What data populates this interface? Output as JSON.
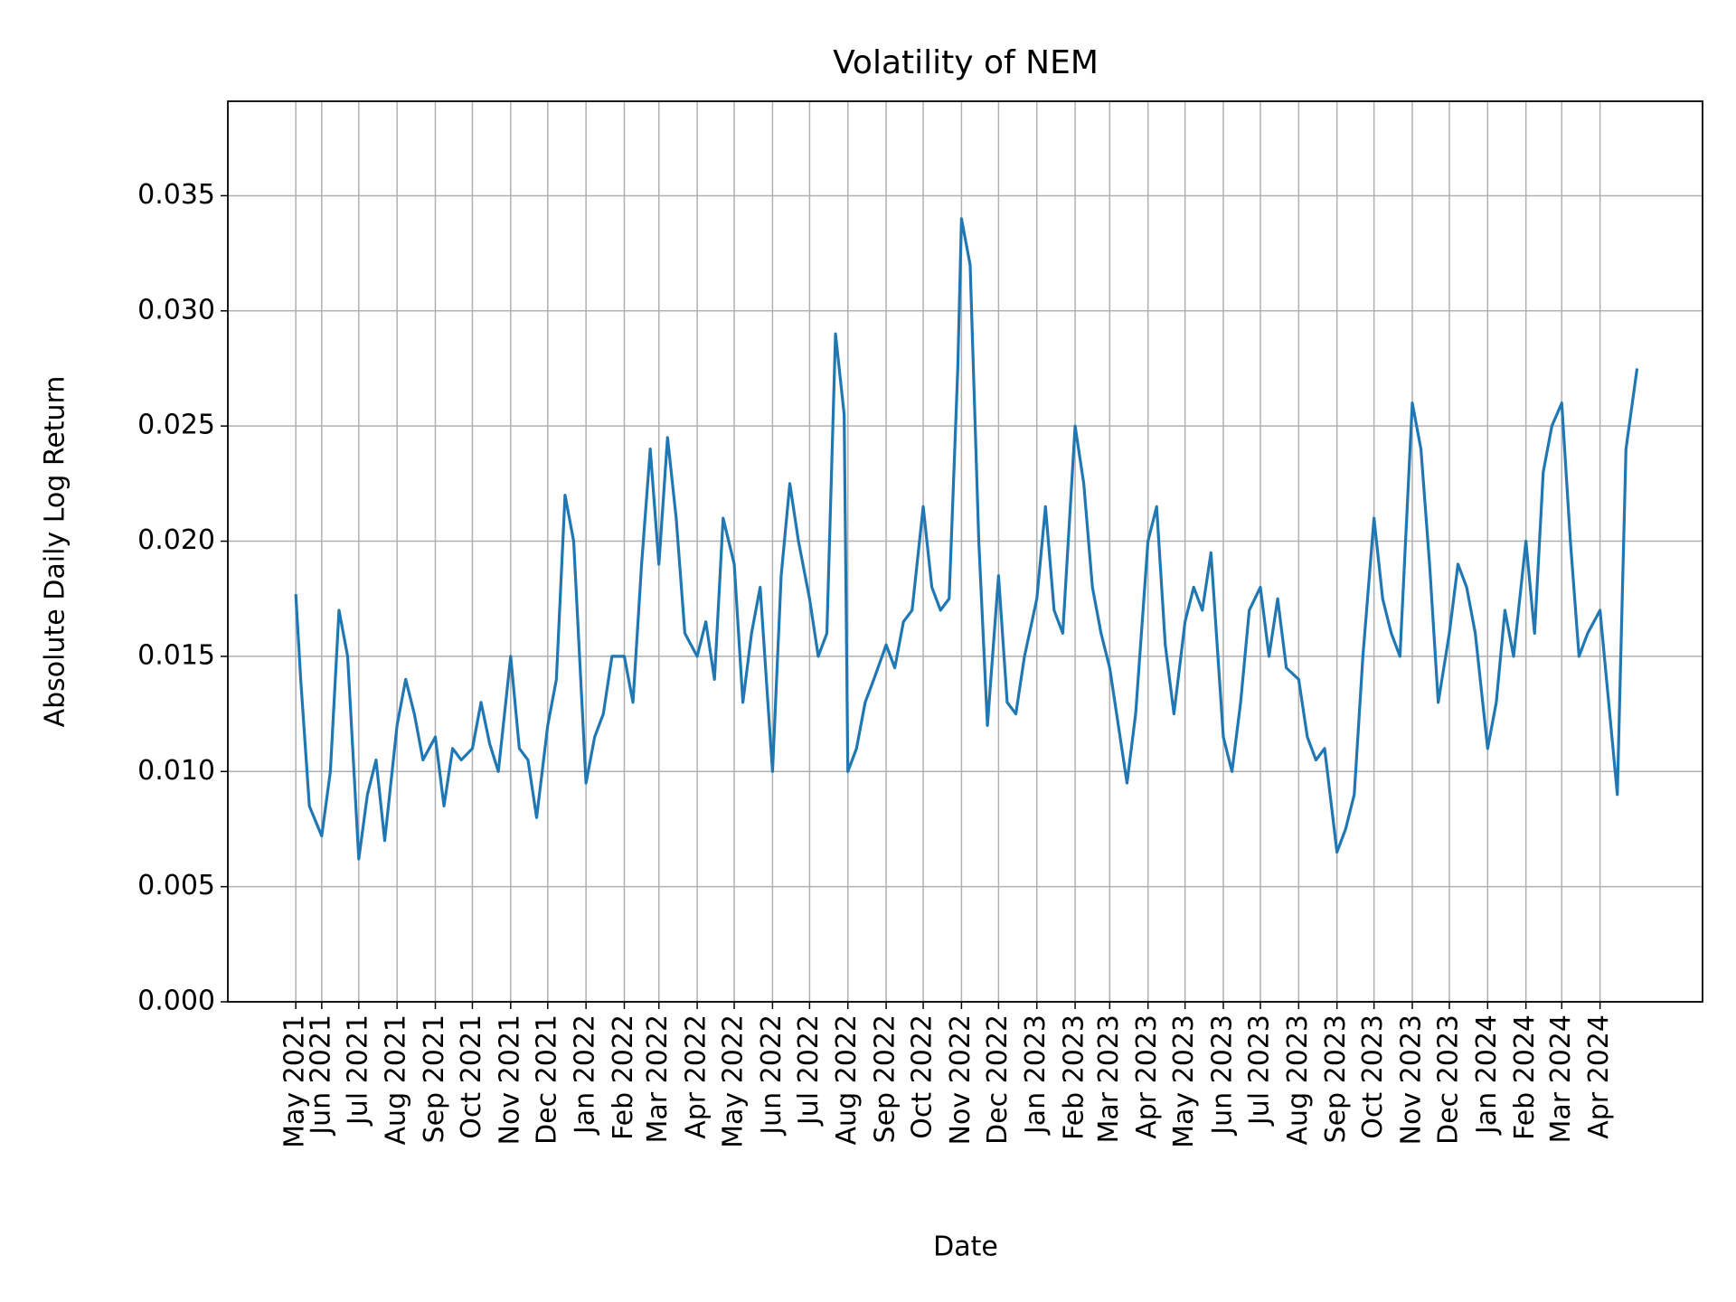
{
  "chart_data": {
    "type": "line",
    "title": "Volatility of NEM",
    "xlabel": "Date",
    "ylabel": "Absolute Daily Log Return",
    "x": [
      "2021-05-11",
      "2021-05-15",
      "2021-05-22",
      "2021-06-01",
      "2021-06-08",
      "2021-06-15",
      "2021-06-22",
      "2021-07-01",
      "2021-07-08",
      "2021-07-15",
      "2021-07-22",
      "2021-08-01",
      "2021-08-08",
      "2021-08-15",
      "2021-08-22",
      "2021-09-01",
      "2021-09-08",
      "2021-09-15",
      "2021-09-22",
      "2021-10-01",
      "2021-10-08",
      "2021-10-15",
      "2021-10-22",
      "2021-11-01",
      "2021-11-08",
      "2021-11-15",
      "2021-11-22",
      "2021-12-01",
      "2021-12-08",
      "2021-12-15",
      "2021-12-22",
      "2022-01-01",
      "2022-01-08",
      "2022-01-15",
      "2022-01-22",
      "2022-02-01",
      "2022-02-08",
      "2022-02-15",
      "2022-02-22",
      "2022-03-01",
      "2022-03-08",
      "2022-03-15",
      "2022-03-22",
      "2022-04-01",
      "2022-04-08",
      "2022-04-15",
      "2022-04-22",
      "2022-05-01",
      "2022-05-08",
      "2022-05-15",
      "2022-05-22",
      "2022-06-01",
      "2022-06-08",
      "2022-06-15",
      "2022-06-22",
      "2022-07-01",
      "2022-07-08",
      "2022-07-15",
      "2022-07-22",
      "2022-07-29",
      "2022-08-01",
      "2022-08-08",
      "2022-08-15",
      "2022-08-22",
      "2022-09-01",
      "2022-09-08",
      "2022-09-15",
      "2022-09-22",
      "2022-10-01",
      "2022-10-08",
      "2022-10-15",
      "2022-10-22",
      "2022-10-29",
      "2022-11-01",
      "2022-11-08",
      "2022-11-15",
      "2022-11-22",
      "2022-12-01",
      "2022-12-08",
      "2022-12-15",
      "2022-12-22",
      "2023-01-01",
      "2023-01-08",
      "2023-01-15",
      "2023-01-22",
      "2023-02-01",
      "2023-02-08",
      "2023-02-15",
      "2023-02-22",
      "2023-03-01",
      "2023-03-08",
      "2023-03-15",
      "2023-03-22",
      "2023-04-01",
      "2023-04-08",
      "2023-04-15",
      "2023-04-22",
      "2023-05-01",
      "2023-05-08",
      "2023-05-15",
      "2023-05-22",
      "2023-06-01",
      "2023-06-08",
      "2023-06-15",
      "2023-06-22",
      "2023-07-01",
      "2023-07-08",
      "2023-07-15",
      "2023-07-22",
      "2023-08-01",
      "2023-08-08",
      "2023-08-15",
      "2023-08-22",
      "2023-09-01",
      "2023-09-08",
      "2023-09-15",
      "2023-09-22",
      "2023-10-01",
      "2023-10-08",
      "2023-10-15",
      "2023-10-22",
      "2023-11-01",
      "2023-11-08",
      "2023-11-15",
      "2023-11-22",
      "2023-12-01",
      "2023-12-08",
      "2023-12-15",
      "2023-12-22",
      "2024-01-01",
      "2024-01-08",
      "2024-01-15",
      "2024-01-22",
      "2024-02-01",
      "2024-02-08",
      "2024-02-15",
      "2024-02-22",
      "2024-03-01",
      "2024-03-08",
      "2024-03-15",
      "2024-03-22",
      "2024-04-01",
      "2024-04-08",
      "2024-04-15",
      "2024-04-22",
      "2024-05-01"
    ],
    "series": [
      {
        "name": "NEM",
        "color": "#1f77b4",
        "values": [
          0.0177,
          0.014,
          0.0085,
          0.0072,
          0.01,
          0.017,
          0.015,
          0.0062,
          0.009,
          0.0105,
          0.007,
          0.012,
          0.014,
          0.0125,
          0.0105,
          0.0115,
          0.0085,
          0.011,
          0.0105,
          0.011,
          0.013,
          0.0112,
          0.01,
          0.015,
          0.011,
          0.0105,
          0.008,
          0.012,
          0.014,
          0.022,
          0.02,
          0.0095,
          0.0115,
          0.0125,
          0.015,
          0.015,
          0.013,
          0.019,
          0.024,
          0.019,
          0.0245,
          0.021,
          0.016,
          0.015,
          0.0165,
          0.014,
          0.021,
          0.019,
          0.013,
          0.016,
          0.018,
          0.01,
          0.0185,
          0.0225,
          0.02,
          0.0175,
          0.015,
          0.016,
          0.029,
          0.0255,
          0.01,
          0.011,
          0.013,
          0.014,
          0.0155,
          0.0145,
          0.0165,
          0.017,
          0.0215,
          0.018,
          0.017,
          0.0175,
          0.0275,
          0.034,
          0.032,
          0.02,
          0.012,
          0.0185,
          0.013,
          0.0125,
          0.015,
          0.0175,
          0.0215,
          0.017,
          0.016,
          0.025,
          0.0225,
          0.018,
          0.016,
          0.0145,
          0.012,
          0.0095,
          0.0125,
          0.02,
          0.0215,
          0.0155,
          0.0125,
          0.0165,
          0.018,
          0.017,
          0.0195,
          0.0115,
          0.01,
          0.013,
          0.017,
          0.018,
          0.015,
          0.0175,
          0.0145,
          0.014,
          0.0115,
          0.0105,
          0.011,
          0.0065,
          0.0075,
          0.009,
          0.015,
          0.021,
          0.0175,
          0.016,
          0.015,
          0.026,
          0.024,
          0.019,
          0.013,
          0.016,
          0.019,
          0.018,
          0.016,
          0.011,
          0.013,
          0.017,
          0.015,
          0.02,
          0.016,
          0.023,
          0.025,
          0.026,
          0.02,
          0.015,
          0.016,
          0.017,
          0.013,
          0.009,
          0.024,
          0.0275
        ]
      }
    ],
    "xlim": [
      "2021-03-17",
      "2024-06-23"
    ],
    "xticks": [
      {
        "value": "2021-05-11",
        "label": "May 2021"
      },
      {
        "value": "2021-06-01",
        "label": "Jun 2021"
      },
      {
        "value": "2021-07-01",
        "label": "Jul 2021"
      },
      {
        "value": "2021-08-01",
        "label": "Aug 2021"
      },
      {
        "value": "2021-09-01",
        "label": "Sep 2021"
      },
      {
        "value": "2021-10-01",
        "label": "Oct 2021"
      },
      {
        "value": "2021-11-01",
        "label": "Nov 2021"
      },
      {
        "value": "2021-12-01",
        "label": "Dec 2021"
      },
      {
        "value": "2022-01-01",
        "label": "Jan 2022"
      },
      {
        "value": "2022-02-01",
        "label": "Feb 2022"
      },
      {
        "value": "2022-03-01",
        "label": "Mar 2022"
      },
      {
        "value": "2022-04-01",
        "label": "Apr 2022"
      },
      {
        "value": "2022-05-01",
        "label": "May 2022"
      },
      {
        "value": "2022-06-01",
        "label": "Jun 2022"
      },
      {
        "value": "2022-07-01",
        "label": "Jul 2022"
      },
      {
        "value": "2022-08-01",
        "label": "Aug 2022"
      },
      {
        "value": "2022-09-01",
        "label": "Sep 2022"
      },
      {
        "value": "2022-10-01",
        "label": "Oct 2022"
      },
      {
        "value": "2022-11-01",
        "label": "Nov 2022"
      },
      {
        "value": "2022-12-01",
        "label": "Dec 2022"
      },
      {
        "value": "2023-01-01",
        "label": "Jan 2023"
      },
      {
        "value": "2023-02-01",
        "label": "Feb 2023"
      },
      {
        "value": "2023-03-01",
        "label": "Mar 2023"
      },
      {
        "value": "2023-04-01",
        "label": "Apr 2023"
      },
      {
        "value": "2023-05-01",
        "label": "May 2023"
      },
      {
        "value": "2023-06-01",
        "label": "Jun 2023"
      },
      {
        "value": "2023-07-01",
        "label": "Jul 2023"
      },
      {
        "value": "2023-08-01",
        "label": "Aug 2023"
      },
      {
        "value": "2023-09-01",
        "label": "Sep 2023"
      },
      {
        "value": "2023-10-01",
        "label": "Oct 2023"
      },
      {
        "value": "2023-11-01",
        "label": "Nov 2023"
      },
      {
        "value": "2023-12-01",
        "label": "Dec 2023"
      },
      {
        "value": "2024-01-01",
        "label": "Jan 2024"
      },
      {
        "value": "2024-02-01",
        "label": "Feb 2024"
      },
      {
        "value": "2024-03-01",
        "label": "Mar 2024"
      },
      {
        "value": "2024-04-01",
        "label": "Apr 2024"
      }
    ],
    "ylim": [
      0,
      0.0391
    ],
    "yticks": [
      {
        "value": 0,
        "label": "0.000"
      },
      {
        "value": 0.005,
        "label": "0.005"
      },
      {
        "value": 0.01,
        "label": "0.010"
      },
      {
        "value": 0.015,
        "label": "0.015"
      },
      {
        "value": 0.02,
        "label": "0.020"
      },
      {
        "value": 0.025,
        "label": "0.025"
      },
      {
        "value": 0.03,
        "label": "0.030"
      },
      {
        "value": 0.035,
        "label": "0.035"
      }
    ],
    "grid": true
  }
}
